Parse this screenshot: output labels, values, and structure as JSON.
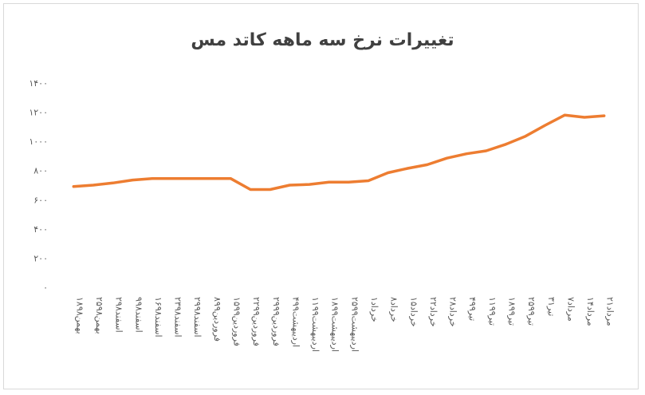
{
  "chart_data": {
    "type": "line",
    "title": "تغییرات نرخ سه ماهه کاتد مس",
    "y_ticks": [
      "۰",
      "۲۰۰",
      "۴۰۰",
      "۶۰۰",
      "۸۰۰",
      "۱۰۰۰",
      "۱۲۰۰",
      "۱۴۰۰"
    ],
    "ylim": [
      0,
      1400
    ],
    "grid": false,
    "color": "#ed7d31",
    "categories": [
      "۱۸بهمن۹۸",
      "۲۵بهمن۹۸",
      "۲اسفند۹۸",
      "۹اسفند۹۸",
      "۱۶اسفند۹۸",
      "۲۳اسفند۹۸",
      "۲۹اسفند۹۸",
      "۸فروردین۹۹",
      "۱۵فروردین۹۹",
      "۲۲فروردین۹۹",
      "۲۹فروردین۹۹",
      "۴اردیبهشت۹۹",
      "۱۱اردیبهشت۹۹",
      "۱۸اردیبهشت۹۹",
      "۲۵اردیبهشت۹۹",
      "۱خرداد",
      "۸خرداد",
      "۱۵خرداد",
      "۲۲خرداد",
      "۲۸خرداد",
      "۴تیر۹۹",
      "۱۱تیر۹۹",
      "۱۸تیر۹۹",
      "۲۵تیر۹۹",
      "۳۱تیر",
      "۷مرداد",
      "۱۴مرداد",
      "۲۱مرداد"
    ],
    "values": [
      690,
      700,
      715,
      735,
      745,
      745,
      745,
      745,
      745,
      670,
      670,
      700,
      705,
      720,
      720,
      730,
      785,
      815,
      840,
      885,
      915,
      935,
      980,
      1035,
      1110,
      1180,
      1165,
      1175
    ]
  }
}
